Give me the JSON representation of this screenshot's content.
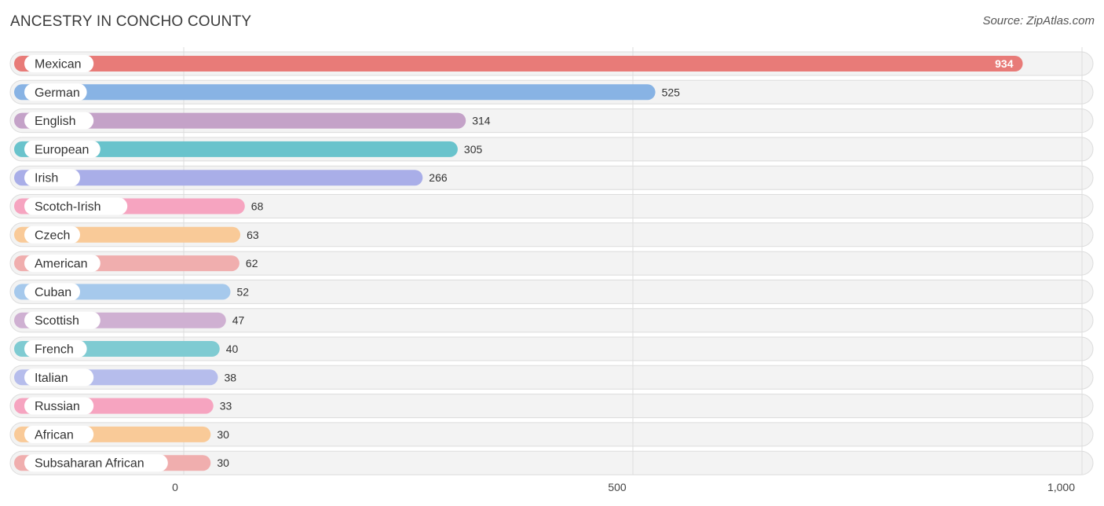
{
  "title": "ANCESTRY IN CONCHO COUNTY",
  "source": "Source: ZipAtlas.com",
  "chart_data": {
    "type": "bar",
    "orientation": "horizontal",
    "title": "ANCESTRY IN CONCHO COUNTY",
    "xlabel": "",
    "ylabel": "",
    "xlim": [
      0,
      1000
    ],
    "x_ticks": [
      0,
      500,
      1000
    ],
    "x_tick_labels": [
      "0",
      "500",
      "1,000"
    ],
    "categories": [
      "Mexican",
      "German",
      "English",
      "European",
      "Irish",
      "Scotch-Irish",
      "Czech",
      "American",
      "Cuban",
      "Scottish",
      "French",
      "Italian",
      "Russian",
      "African",
      "Subsaharan African"
    ],
    "values": [
      934,
      525,
      314,
      305,
      266,
      68,
      63,
      62,
      52,
      47,
      40,
      38,
      33,
      30,
      30
    ],
    "value_labels": [
      "934",
      "525",
      "314",
      "305",
      "266",
      "68",
      "63",
      "62",
      "52",
      "47",
      "40",
      "38",
      "33",
      "30",
      "30"
    ],
    "colors": [
      "#e87b78",
      "#88b3e4",
      "#c4a2c8",
      "#69c3cc",
      "#a9aee8",
      "#f6a4c0",
      "#f9ca98",
      "#f0aeae",
      "#a6c9ec",
      "#cfb0d2",
      "#7fcbd2",
      "#b6bdec",
      "#f6a4c0",
      "#f9ca98",
      "#f0aeae"
    ],
    "grid": true
  }
}
